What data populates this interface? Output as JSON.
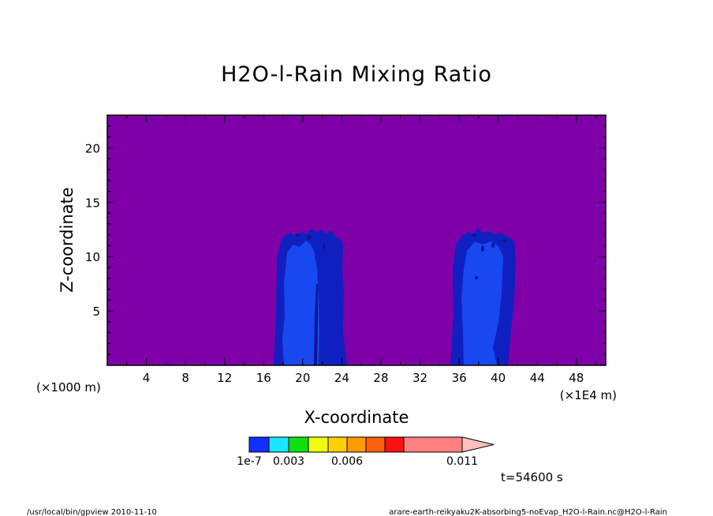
{
  "chart_data": {
    "type": "heatmap",
    "title": "H2O-l-Rain Mixing Ratio",
    "xlabel": "X-coordinate",
    "ylabel": "Z-coordinate",
    "x_unit_left": "(×1000 m)",
    "x_unit_right": "(×1E4 m)",
    "xlim": [
      0,
      51
    ],
    "ylim": [
      0,
      23
    ],
    "x_ticks": [
      4,
      8,
      12,
      16,
      20,
      24,
      28,
      32,
      36,
      40,
      44,
      48
    ],
    "y_ticks": [
      5,
      10,
      15,
      20
    ],
    "background_color": "#7f00a8",
    "colorbar": {
      "colors": [
        "#1030ff",
        "#18e8ff",
        "#10e010",
        "#f0ff10",
        "#ffd000",
        "#ff9a00",
        "#ff6010",
        "#ff1010",
        "#ff8080",
        "#ffc0c0"
      ],
      "tick_labels": [
        "1e-7",
        "0.003",
        "0.006",
        "0.011"
      ]
    },
    "regions": [
      {
        "label": "cloud-left-outer",
        "color": "#1020c0",
        "x_range": [
          17,
          24.5
        ],
        "z_top": 12.6
      },
      {
        "label": "cloud-left-core",
        "color": "#1848f0",
        "x_range": [
          18,
          22
        ],
        "z_top": 11.5
      },
      {
        "label": "cloud-right-outer",
        "color": "#1020c0",
        "x_range": [
          35.3,
          42
        ],
        "z_top": 12.5
      },
      {
        "label": "cloud-right-core",
        "color": "#1848f0",
        "x_range": [
          36.5,
          40.8
        ],
        "z_top": 11.8
      }
    ]
  },
  "time_label": "t=54600 s",
  "footer": {
    "left": "/usr/local/bin/gpview   2010-11-10",
    "right": "arare-earth-reikyaku2K-absorbing5-noEvap_H2O-l-Rain.nc@H2O-l-Rain"
  }
}
